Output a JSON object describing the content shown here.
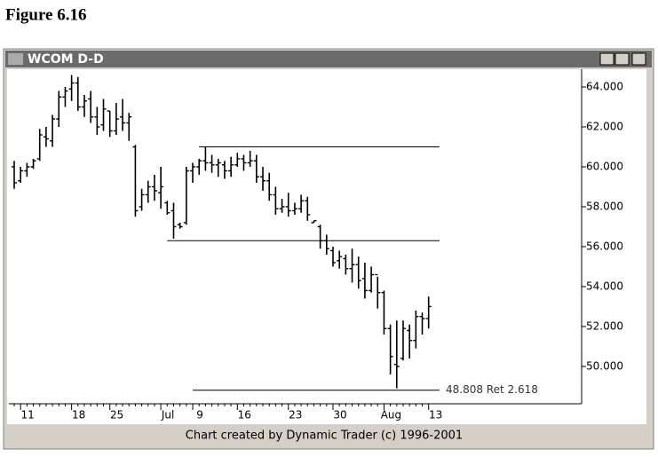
{
  "figure_title": "Figure 6.16",
  "window_title": "WCOM D-D",
  "footer": "Chart created by Dynamic Trader (c) 1996-2001",
  "chart_data": {
    "type": "ohlc",
    "categories": [
      null,
      "11",
      null,
      null,
      null,
      null,
      null,
      null,
      null,
      "18",
      null,
      null,
      null,
      null,
      null,
      "25",
      null,
      null,
      null,
      null,
      null,
      null,
      null,
      "Jul",
      null,
      null,
      null,
      null,
      "9",
      null,
      null,
      null,
      null,
      null,
      null,
      "16",
      null,
      null,
      null,
      null,
      null,
      null,
      null,
      "23",
      null,
      null,
      null,
      null,
      null,
      null,
      "30",
      null,
      null,
      null,
      null,
      null,
      null,
      null,
      "Aug",
      null,
      null,
      null,
      null,
      null,
      null,
      "13"
    ],
    "open": [
      60.0,
      59.3,
      59.8,
      60.0,
      60.4,
      61.5,
      61.3,
      62.4,
      63.5,
      63.9,
      64.2,
      63.0,
      63.4,
      62.5,
      62.1,
      62.8,
      61.8,
      62.5,
      62.2,
      61.0,
      58.0,
      58.6,
      59.0,
      58.7,
      58.2,
      57.8,
      57.1,
      57.2,
      59.8,
      60.0,
      60.3,
      60.2,
      60.1,
      60.1,
      59.8,
      60.1,
      60.4,
      60.2,
      60.3,
      59.5,
      59.3,
      58.6,
      57.9,
      58.0,
      57.8,
      57.9,
      58.3,
      57.2,
      57.0,
      56.3,
      55.8,
      55.3,
      55.4,
      54.9,
      55.1,
      54.4,
      53.8,
      54.6,
      53.7,
      51.9,
      50.1,
      50.4,
      51.8,
      51.3,
      52.5,
      52.4
    ],
    "high": [
      60.3,
      60.0,
      60.2,
      60.4,
      61.9,
      62.0,
      62.6,
      63.8,
      64.0,
      64.6,
      64.5,
      63.6,
      63.8,
      63.0,
      63.4,
      62.8,
      63.2,
      63.4,
      62.7,
      61.1,
      58.9,
      59.3,
      59.6,
      60.0,
      58.3,
      58.2,
      57.2,
      60.0,
      60.2,
      60.4,
      61.0,
      60.6,
      60.4,
      60.3,
      60.5,
      60.7,
      60.6,
      60.8,
      60.6,
      60.0,
      59.7,
      59.0,
      58.4,
      58.7,
      58.2,
      58.6,
      58.5,
      57.3,
      57.1,
      56.6,
      56.0,
      55.8,
      55.6,
      55.9,
      55.5,
      55.2,
      55.0,
      54.5,
      53.8,
      52.1,
      52.3,
      52.3,
      52.1,
      52.8,
      52.7,
      53.5
    ],
    "low": [
      58.9,
      59.2,
      59.5,
      59.9,
      60.3,
      61.0,
      61.0,
      62.0,
      63.0,
      63.3,
      62.8,
      62.5,
      62.2,
      61.6,
      61.8,
      61.5,
      61.6,
      61.8,
      61.3,
      57.5,
      57.8,
      58.2,
      58.3,
      57.9,
      57.6,
      56.4,
      56.9,
      57.1,
      59.2,
      59.6,
      59.8,
      59.7,
      59.5,
      59.4,
      59.5,
      60.0,
      59.8,
      60.0,
      59.2,
      58.8,
      58.3,
      57.6,
      57.7,
      57.5,
      57.6,
      57.7,
      57.3,
      57.2,
      55.9,
      55.6,
      55.0,
      54.9,
      54.6,
      54.2,
      53.9,
      53.4,
      53.7,
      52.9,
      51.6,
      49.6,
      48.9,
      50.3,
      50.4,
      50.9,
      51.6,
      51.9
    ],
    "close": [
      59.2,
      59.8,
      60.0,
      60.3,
      61.6,
      61.4,
      62.4,
      63.5,
      63.8,
      64.2,
      63.0,
      63.3,
      62.5,
      62.0,
      62.9,
      61.8,
      62.4,
      62.2,
      62.5,
      57.8,
      58.6,
      59.0,
      58.8,
      59.0,
      57.7,
      57.0,
      57.0,
      59.8,
      60.0,
      60.3,
      60.2,
      60.1,
      60.2,
      59.8,
      60.1,
      60.4,
      60.2,
      60.3,
      59.5,
      59.3,
      58.6,
      57.9,
      58.0,
      57.8,
      57.9,
      58.3,
      57.6,
      57.3,
      56.3,
      55.9,
      55.2,
      55.5,
      54.9,
      55.1,
      54.3,
      53.8,
      54.6,
      53.7,
      51.9,
      50.5,
      50.0,
      51.9,
      51.3,
      52.5,
      52.4,
      53.0
    ],
    "color": "#000000",
    "ylim": [
      48.13,
      64.89
    ],
    "yticks": [
      {
        "value": 64,
        "label": "64.000"
      },
      {
        "value": 62,
        "label": "62.000"
      },
      {
        "value": 60,
        "label": "60.000"
      },
      {
        "value": 58,
        "label": "58.000"
      },
      {
        "value": 56,
        "label": "56.000"
      },
      {
        "value": 54,
        "label": "54.000"
      },
      {
        "value": 52,
        "label": "52.000"
      },
      {
        "value": 50,
        "label": "50.000"
      }
    ],
    "levels": [
      {
        "value": 61,
        "from": 29
      },
      {
        "value": 56.3,
        "from": 24
      },
      {
        "value": 48.808,
        "from": 28,
        "label": "48.808 Ret 2.618"
      }
    ]
  }
}
